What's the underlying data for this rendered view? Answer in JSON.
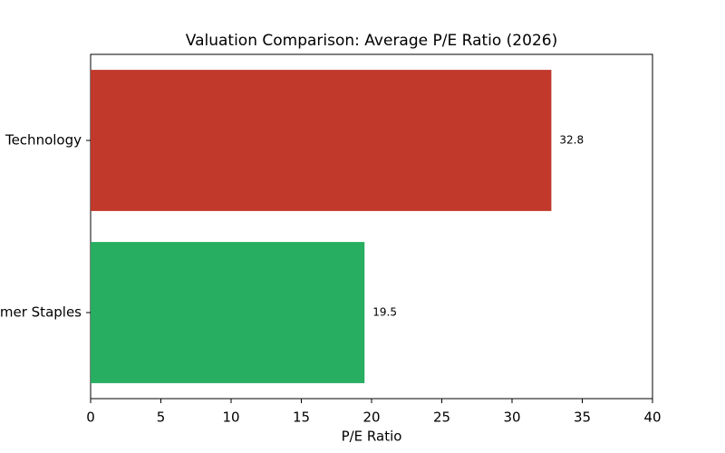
{
  "chart_data": {
    "type": "barh",
    "title": "Valuation Comparison: Average P/E Ratio (2026)",
    "xlabel": "P/E Ratio",
    "categories": [
      "Technology",
      "Consumer Staples"
    ],
    "values": [
      32.8,
      19.5
    ],
    "colors": [
      "#c0392b",
      "#27ae60"
    ],
    "xlim": [
      0,
      40
    ],
    "xticks": [
      0,
      5,
      10,
      15,
      20,
      25,
      30,
      35,
      40
    ],
    "grid": false
  }
}
